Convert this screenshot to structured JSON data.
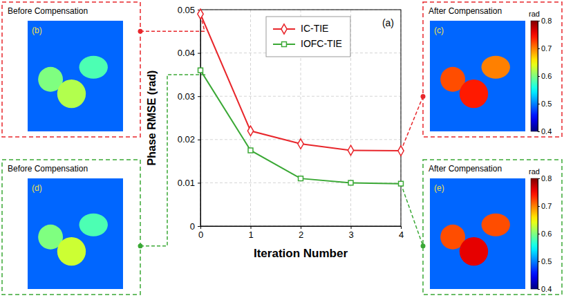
{
  "chart_data": {
    "type": "line",
    "x_label": "Iteration Number",
    "y_label": "Phase RMSE (rad)",
    "annotation": "(a)",
    "x": [
      0,
      1,
      2,
      3,
      4
    ],
    "xlim": [
      0,
      4
    ],
    "xticks": [
      0,
      1,
      2,
      3,
      4
    ],
    "ylim": [
      0,
      0.05
    ],
    "yticks": [
      0,
      0.01,
      0.02,
      0.03,
      0.04,
      0.05
    ],
    "grid": true,
    "legend": "top",
    "series": [
      {
        "name": "IC-TIE",
        "color": "#e8262b",
        "marker": "diamond",
        "values": [
          0.049,
          0.022,
          0.019,
          0.0175,
          0.0174
        ]
      },
      {
        "name": "IOFC-TIE",
        "color": "#3aa835",
        "marker": "square",
        "values": [
          0.036,
          0.0175,
          0.011,
          0.01,
          0.0098
        ]
      }
    ]
  },
  "colorbar": {
    "label": "rad",
    "lim": [
      0.4,
      0.8
    ],
    "ticks": [
      0.4,
      0.5,
      0.6,
      0.7,
      0.8
    ]
  },
  "panels": [
    {
      "letter": "(b)",
      "title": "Before Compensation",
      "phase_background": 0.49,
      "phase_objects": [
        0.6,
        0.62,
        0.58
      ]
    },
    {
      "letter": "(c)",
      "title": "After Compensation",
      "phase_background": 0.49,
      "phase_objects": [
        0.72,
        0.74,
        0.7
      ]
    },
    {
      "letter": "(d)",
      "title": "Before Compensation",
      "phase_background": 0.49,
      "phase_objects": [
        0.6,
        0.63,
        0.58
      ]
    },
    {
      "letter": "(e)",
      "title": "After Compensation",
      "phase_background": 0.49,
      "phase_objects": [
        0.72,
        0.76,
        0.72
      ]
    }
  ]
}
